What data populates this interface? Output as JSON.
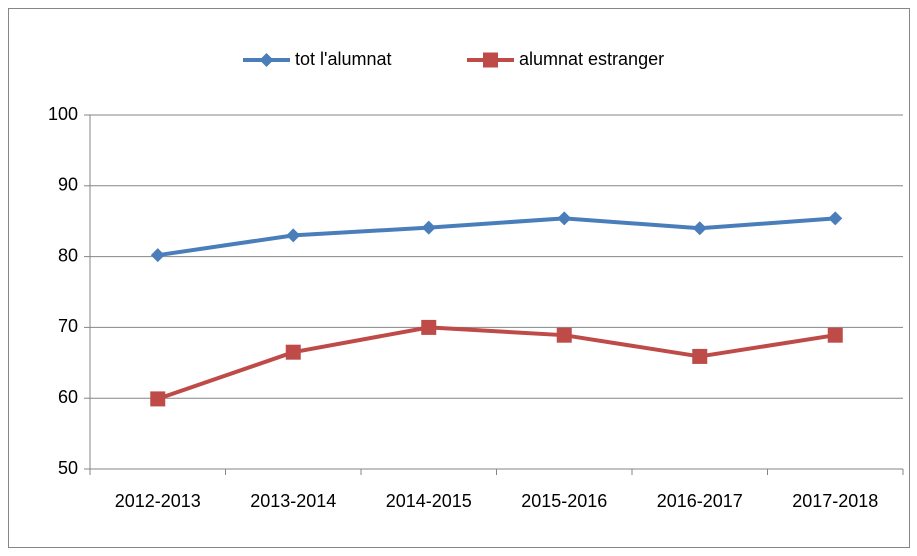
{
  "chart_data": {
    "type": "line",
    "categories": [
      "2012-2013",
      "2013-2014",
      "2014-2015",
      "2015-2016",
      "2016-2017",
      "2017-2018"
    ],
    "series": [
      {
        "name": "tot l'alumnat",
        "color": "#4a7ebb",
        "marker": "diamond",
        "values": [
          80.2,
          83,
          84.1,
          85.4,
          84,
          85.4
        ]
      },
      {
        "name": "alumnat estranger",
        "color": "#be4b48",
        "marker": "square",
        "values": [
          59.9,
          66.5,
          70,
          68.9,
          65.9,
          68.9
        ]
      }
    ],
    "ylim": [
      50,
      100
    ],
    "yticks": [
      50,
      60,
      70,
      80,
      90,
      100
    ],
    "grid": true,
    "legend": "top"
  }
}
